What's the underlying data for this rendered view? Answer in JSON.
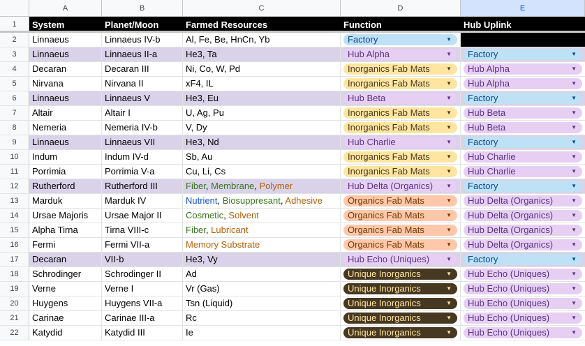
{
  "columns": [
    "A",
    "B",
    "C",
    "D",
    "E"
  ],
  "selected_column": "E",
  "header": [
    "System",
    "Planet/Moon",
    "Farmed Resources",
    "Function",
    "Hub Uplink"
  ],
  "colors": {
    "green": "#38761d",
    "orange": "#b45f06",
    "blue": "#1155cc",
    "hub_row": "#d9d2e9"
  },
  "chip_types": {
    "Factory": "factory",
    "Hub": "hub",
    "Inorganics Fab Mats": "inorg",
    "Organics Fab Mats": "org",
    "Unique Inorganics": "unique"
  },
  "rows": [
    {
      "n": "2",
      "system": "Linnaeus",
      "planet": "Linnaeus IV-b",
      "resources": [
        {
          "t": "Al, Fe, Be, HnCn, Yb"
        }
      ],
      "function": "Factory",
      "uplink": null,
      "hub": false
    },
    {
      "n": "3",
      "system": "Linnaeus",
      "planet": "Linnaeus II-a",
      "resources": [
        {
          "t": "He3, Ta"
        }
      ],
      "function": "Hub Alpha",
      "uplink": "Factory",
      "hub": true
    },
    {
      "n": "4",
      "system": "Decaran",
      "planet": "Decaran III",
      "resources": [
        {
          "t": "Ni, Co, W, Pd"
        }
      ],
      "function": "Inorganics Fab Mats",
      "uplink": "Hub Alpha",
      "hub": false
    },
    {
      "n": "5",
      "system": "Nirvana",
      "planet": "Nirvana II",
      "resources": [
        {
          "t": "xF4, IL"
        }
      ],
      "function": "Inorganics Fab Mats",
      "uplink": "Hub Alpha",
      "hub": false
    },
    {
      "n": "6",
      "system": "Linnaeus",
      "planet": "Linnaeus V",
      "resources": [
        {
          "t": "He3, Eu"
        }
      ],
      "function": "Hub Beta",
      "uplink": "Factory",
      "hub": true
    },
    {
      "n": "7",
      "system": "Altair",
      "planet": "Altair I",
      "resources": [
        {
          "t": "U, Ag, Pu"
        }
      ],
      "function": "Inorganics Fab Mats",
      "uplink": "Hub Beta",
      "hub": false
    },
    {
      "n": "8",
      "system": "Nemeria",
      "planet": "Nemeria IV-b",
      "resources": [
        {
          "t": "V, Dy"
        }
      ],
      "function": "Inorganics Fab Mats",
      "uplink": "Hub Beta",
      "hub": false
    },
    {
      "n": "9",
      "system": "Linnaeus",
      "planet": "Linnaeus VII",
      "resources": [
        {
          "t": "He3, Nd"
        }
      ],
      "function": "Hub Charlie",
      "uplink": "Factory",
      "hub": true
    },
    {
      "n": "10",
      "system": "Indum",
      "planet": "Indum IV-d",
      "resources": [
        {
          "t": "Sb, Au"
        }
      ],
      "function": "Inorganics Fab Mats",
      "uplink": "Hub Charlie",
      "hub": false
    },
    {
      "n": "11",
      "system": "Porrimia",
      "planet": "Porrimia V-a",
      "resources": [
        {
          "t": "Cu, Li, Cs"
        }
      ],
      "function": "Inorganics Fab Mats",
      "uplink": "Hub Charlie",
      "hub": false
    },
    {
      "n": "12",
      "system": "Rutherford",
      "planet": "Rutherford III",
      "resources": [
        {
          "t": "Fiber",
          "c": "green"
        },
        {
          "t": ", "
        },
        {
          "t": "Membrane",
          "c": "green"
        },
        {
          "t": ", "
        },
        {
          "t": "Polymer",
          "c": "orange"
        }
      ],
      "function": "Hub Delta (Organics)",
      "uplink": "Factory",
      "hub": true
    },
    {
      "n": "13",
      "system": "Marduk",
      "planet": "Marduk IV",
      "resources": [
        {
          "t": "Nutrient",
          "c": "blue"
        },
        {
          "t": ", "
        },
        {
          "t": "Biosuppresant",
          "c": "green"
        },
        {
          "t": ", "
        },
        {
          "t": "Adhesive",
          "c": "orange"
        }
      ],
      "function": "Organics Fab Mats",
      "uplink": "Hub Delta (Organics)",
      "hub": false
    },
    {
      "n": "14",
      "system": "Ursae Majoris",
      "planet": "Ursae Major II",
      "resources": [
        {
          "t": "Cosmetic",
          "c": "green"
        },
        {
          "t": ", "
        },
        {
          "t": "Solvent",
          "c": "orange"
        }
      ],
      "function": "Organics Fab Mats",
      "uplink": "Hub Delta (Organics)",
      "hub": false
    },
    {
      "n": "15",
      "system": "Alpha Tirna",
      "planet": "Tirna VIII-c",
      "resources": [
        {
          "t": "Fiber",
          "c": "green"
        },
        {
          "t": ", "
        },
        {
          "t": "Lubricant",
          "c": "orange"
        }
      ],
      "function": "Organics Fab Mats",
      "uplink": "Hub Delta (Organics)",
      "hub": false
    },
    {
      "n": "16",
      "system": "Fermi",
      "planet": "Fermi VII-a",
      "resources": [
        {
          "t": "Memory Substrate",
          "c": "orange"
        }
      ],
      "function": "Organics Fab Mats",
      "uplink": "Hub Delta (Organics)",
      "hub": false
    },
    {
      "n": "17",
      "system": "Decaran",
      "planet": "VII-b",
      "resources": [
        {
          "t": "He3, Vy"
        }
      ],
      "function": "Hub Echo (Uniques)",
      "uplink": "Factory",
      "hub": true
    },
    {
      "n": "18",
      "system": "Schrodinger",
      "planet": "Schrodinger II",
      "resources": [
        {
          "t": "Ad"
        }
      ],
      "function": "Unique Inorganics",
      "uplink": "Hub Echo (Uniques)",
      "hub": false
    },
    {
      "n": "19",
      "system": "Verne",
      "planet": "Verne I",
      "resources": [
        {
          "t": "Vr (Gas)"
        }
      ],
      "function": "Unique Inorganics",
      "uplink": "Hub Echo (Uniques)",
      "hub": false
    },
    {
      "n": "20",
      "system": "Huygens",
      "planet": "Huygens VII-a",
      "resources": [
        {
          "t": "Tsn (Liquid)"
        }
      ],
      "function": "Unique Inorganics",
      "uplink": "Hub Echo (Uniques)",
      "hub": false
    },
    {
      "n": "21",
      "system": "Carinae",
      "planet": "Carinae III-a",
      "resources": [
        {
          "t": "Rc"
        }
      ],
      "function": "Unique Inorganics",
      "uplink": "Hub Echo (Uniques)",
      "hub": false
    },
    {
      "n": "22",
      "system": "Katydid",
      "planet": "Katydid III",
      "resources": [
        {
          "t": "Ie"
        }
      ],
      "function": "Unique Inorganics",
      "uplink": "Hub Echo (Uniques)",
      "hub": false
    }
  ]
}
